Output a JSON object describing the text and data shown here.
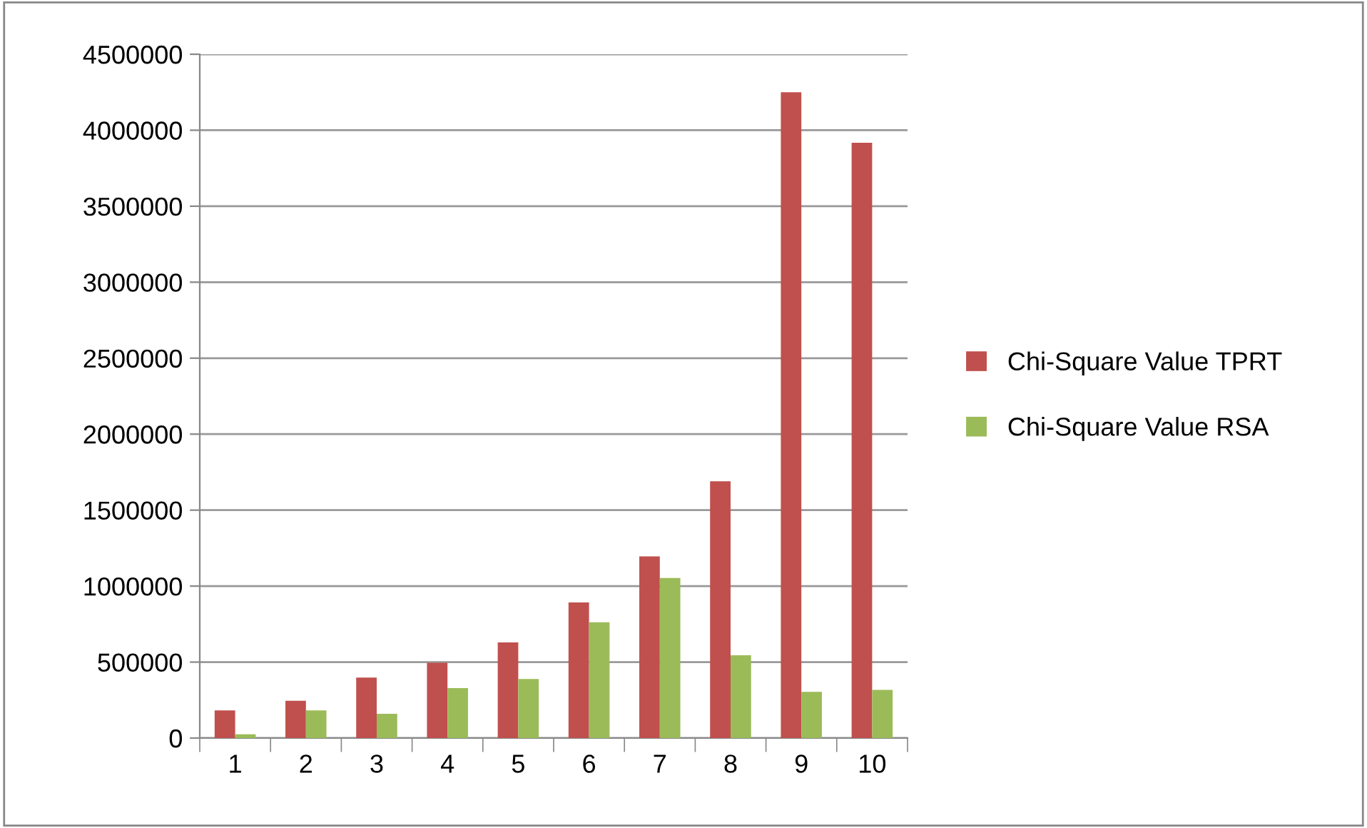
{
  "chart_data": {
    "type": "bar",
    "categories": [
      "1",
      "2",
      "3",
      "4",
      "5",
      "6",
      "7",
      "8",
      "9",
      "10"
    ],
    "series": [
      {
        "name": "Chi-Square Value TPRT",
        "color": "#c0504d",
        "values": [
          182000,
          245000,
          398000,
          495000,
          630000,
          893000,
          1195000,
          1690000,
          4250000,
          3918000
        ]
      },
      {
        "name": "Chi-Square Value RSA",
        "color": "#9bbb59",
        "values": [
          25000,
          182000,
          160000,
          329000,
          389000,
          762000,
          1053000,
          545000,
          304000,
          317000
        ]
      }
    ],
    "ylim": [
      0,
      4500000
    ],
    "yticks": [
      0,
      500000,
      1000000,
      1500000,
      2000000,
      2500000,
      3000000,
      3500000,
      4000000,
      4500000
    ],
    "grid": "y",
    "legend": "right"
  }
}
